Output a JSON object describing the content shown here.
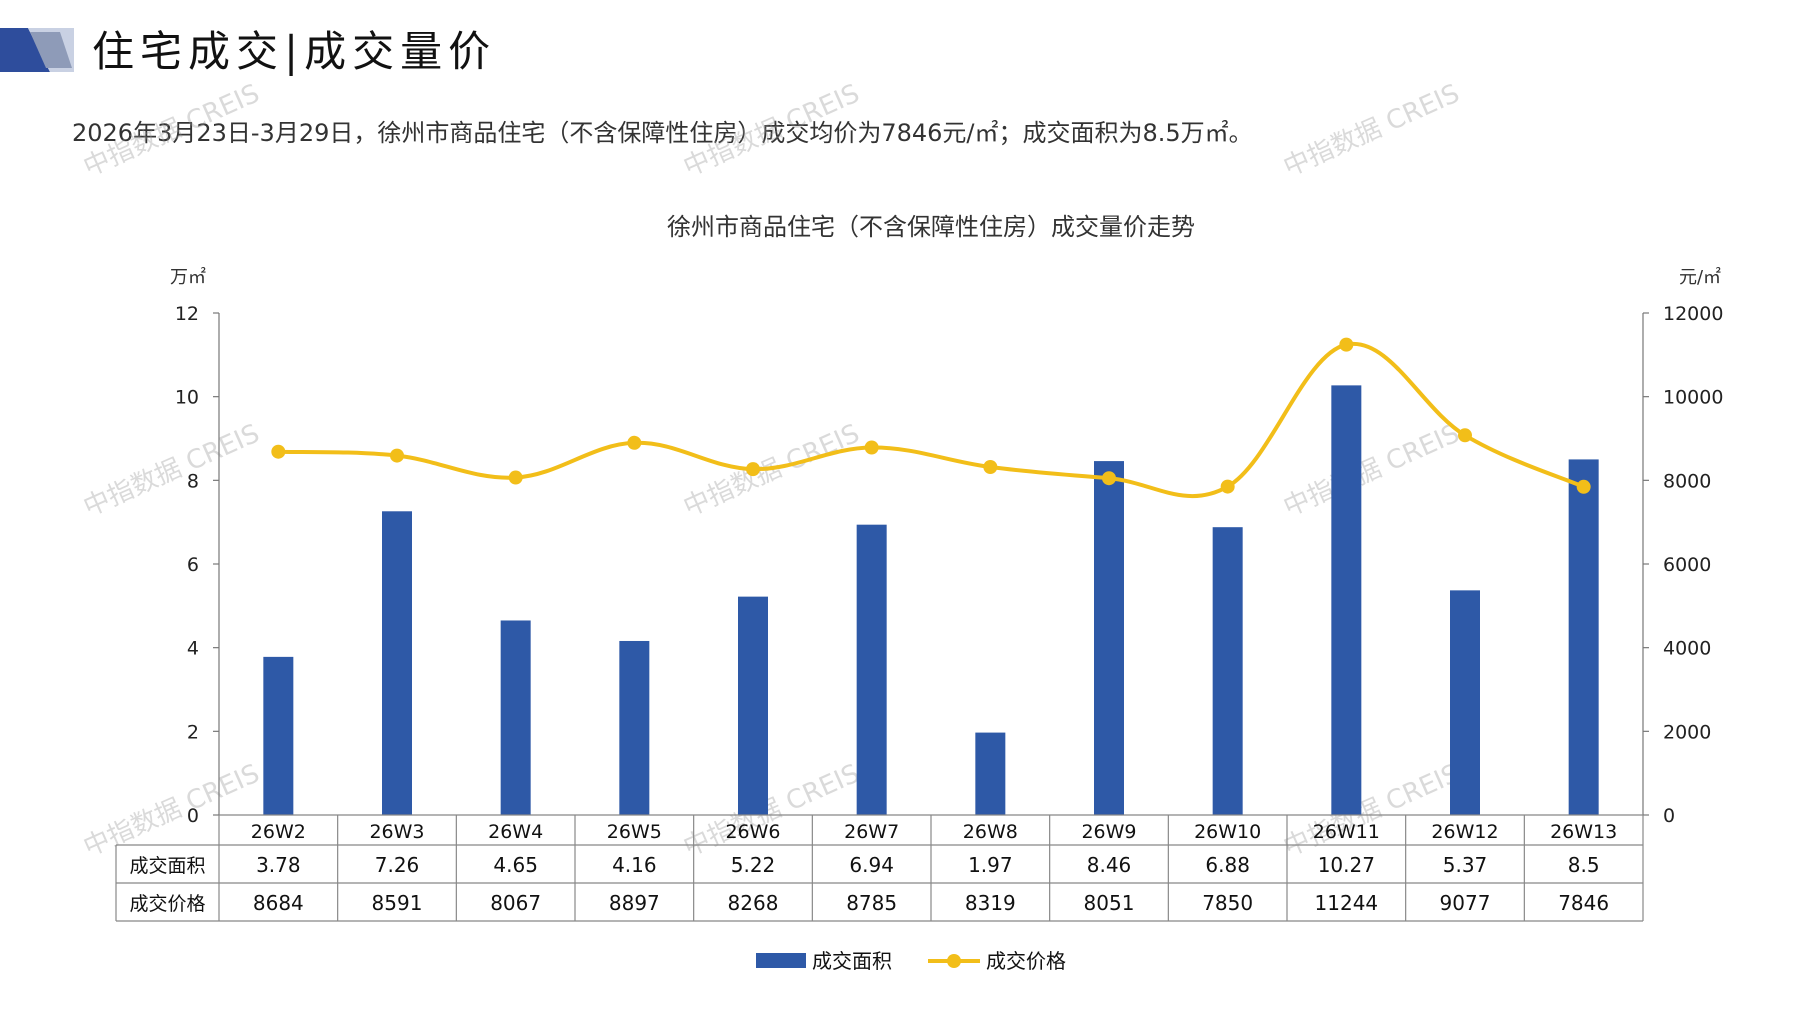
{
  "header": {
    "title": "住宅成交|成交量价",
    "summary": "2026年3月23日-3月29日，徐州市商品住宅（不含保障性住房）成交均价为7846元/㎡；成交面积为8.5万㎡。"
  },
  "watermark": "中指数据 CREIS",
  "colors": {
    "bar": "#2E59A7",
    "line": "#F2BE19",
    "logo_dark": "#2E4D9C",
    "logo_light": "#C9D1E3"
  },
  "chart_data": {
    "type": "bar+line",
    "title": "徐州市商品住宅（不含保障性住房）成交量价走势",
    "categories": [
      "26W2",
      "26W3",
      "26W4",
      "26W5",
      "26W6",
      "26W7",
      "26W8",
      "26W9",
      "26W10",
      "26W11",
      "26W12",
      "26W13"
    ],
    "left_axis": {
      "unit": "万㎡",
      "ylim": [
        0,
        12
      ],
      "ticks": [
        "0",
        "2",
        "4",
        "6",
        "8",
        "10",
        "12"
      ]
    },
    "right_axis": {
      "unit": "元/㎡",
      "ylim": [
        0,
        12000
      ],
      "ticks": [
        "0",
        "2000",
        "4000",
        "6000",
        "8000",
        "10000",
        "12000"
      ]
    },
    "series": [
      {
        "name": "成交面积",
        "type": "bar",
        "axis": "left",
        "values": [
          3.78,
          7.26,
          4.65,
          4.16,
          5.22,
          6.94,
          1.97,
          8.46,
          6.88,
          10.27,
          5.37,
          8.5
        ],
        "labels": [
          "3.78",
          "7.26",
          "4.65",
          "4.16",
          "5.22",
          "6.94",
          "1.97",
          "8.46",
          "6.88",
          "10.27",
          "5.37",
          "8.5"
        ]
      },
      {
        "name": "成交价格",
        "type": "line",
        "axis": "right",
        "values": [
          8684,
          8591,
          8067,
          8897,
          8268,
          8785,
          8319,
          8051,
          7850,
          11244,
          9077,
          7846
        ],
        "labels": [
          "8684",
          "8591",
          "8067",
          "8897",
          "8268",
          "8785",
          "8319",
          "8051",
          "7850",
          "11244",
          "9077",
          "7846"
        ]
      }
    ],
    "grid": false,
    "legend_placement": "bottom",
    "data_table": true
  }
}
